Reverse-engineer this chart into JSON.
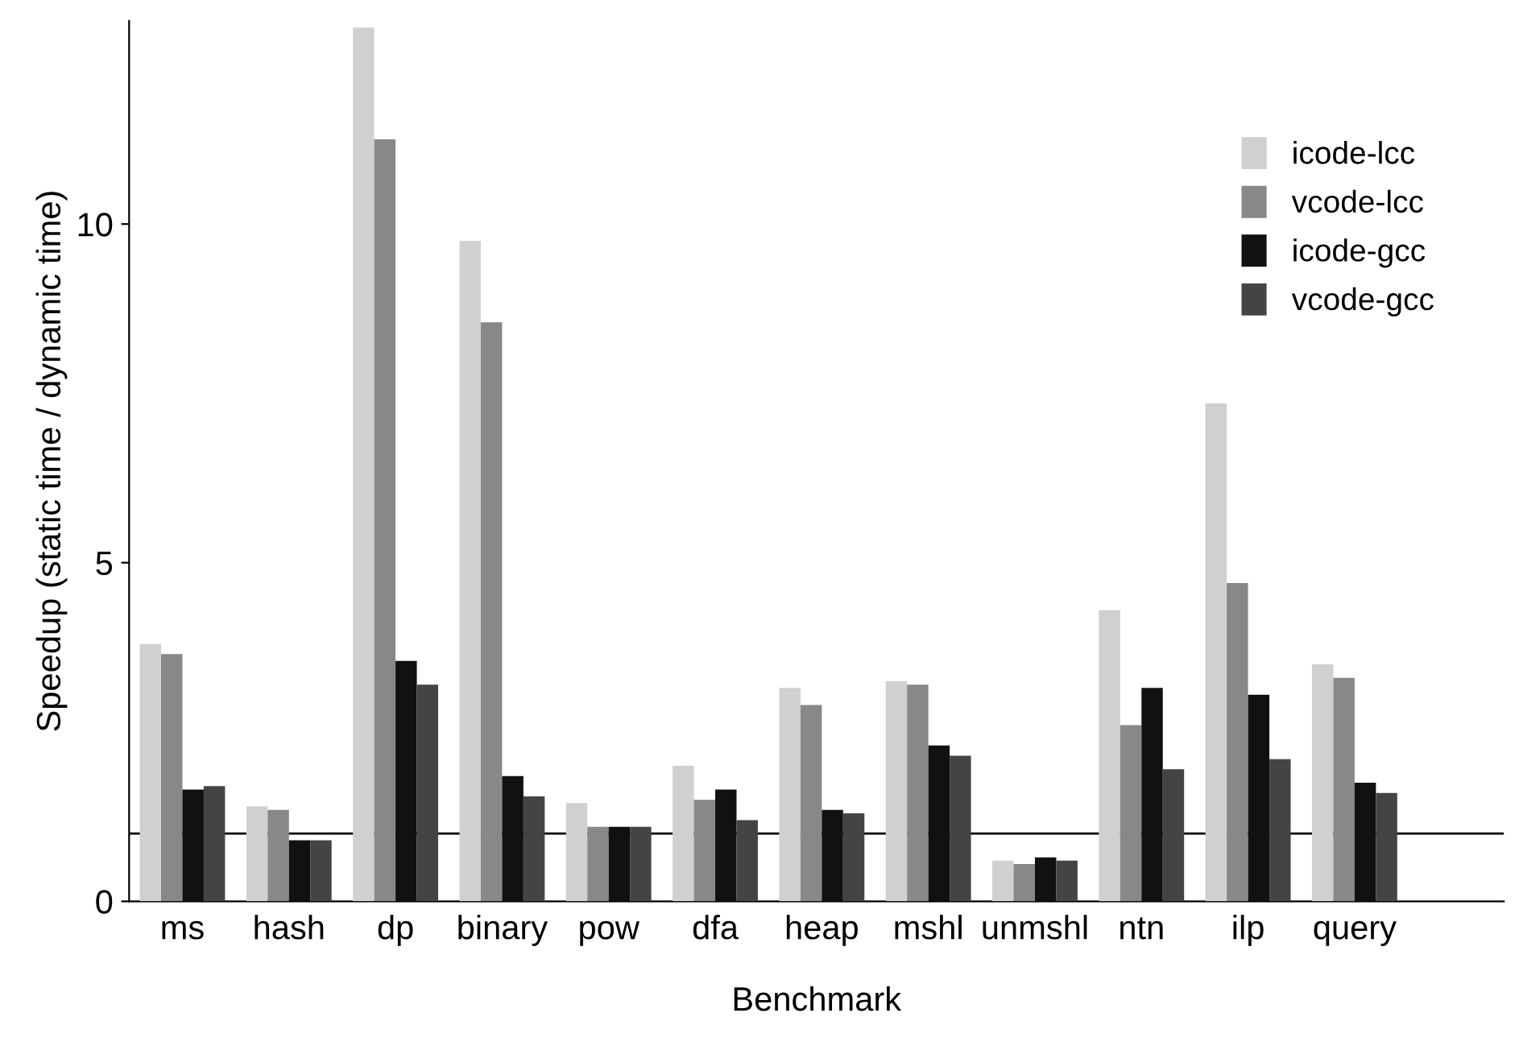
{
  "chart_data": {
    "type": "bar",
    "xlabel": "Benchmark",
    "ylabel": "Speedup (static time / dynamic time)",
    "categories": [
      "ms",
      "hash",
      "dp",
      "binary",
      "pow",
      "dfa",
      "heap",
      "mshl",
      "unmshl",
      "ntn",
      "ilp",
      "query"
    ],
    "series": [
      {
        "name": "icode-lcc",
        "color": "#d0d0d0",
        "values": [
          3.8,
          1.4,
          12.9,
          9.75,
          1.45,
          2.0,
          3.15,
          3.25,
          0.6,
          4.3,
          7.35,
          3.5
        ]
      },
      {
        "name": "vcode-lcc",
        "color": "#888888",
        "values": [
          3.65,
          1.35,
          11.25,
          8.55,
          1.1,
          1.5,
          2.9,
          3.2,
          0.55,
          2.6,
          4.7,
          3.3
        ]
      },
      {
        "name": "icode-gcc",
        "color": "#111111",
        "values": [
          1.65,
          0.9,
          3.55,
          1.85,
          1.1,
          1.65,
          1.35,
          2.3,
          0.65,
          3.15,
          3.05,
          1.75
        ]
      },
      {
        "name": "vcode-gcc",
        "color": "#444444",
        "values": [
          1.7,
          0.9,
          3.2,
          1.55,
          1.1,
          1.2,
          1.3,
          2.15,
          0.6,
          1.95,
          2.1,
          1.6
        ]
      }
    ],
    "ylim": [
      0,
      13
    ],
    "yticks": [
      0,
      5,
      10
    ],
    "ref_lines": [
      {
        "axis": "y",
        "value": 1,
        "color": "#000000"
      }
    ],
    "legend": "top right",
    "grid": false
  }
}
